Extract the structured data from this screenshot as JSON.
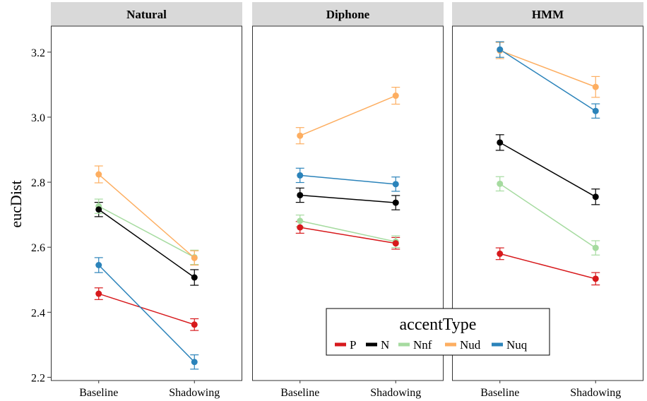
{
  "chart_data": {
    "type": "line",
    "ylabel": "eucDist",
    "xlabel": "",
    "categories": [
      "Baseline",
      "Shadowing"
    ],
    "ylim": [
      2.19,
      3.28
    ],
    "yticks": [
      "2.2",
      "2.4",
      "2.6",
      "2.8",
      "3.0",
      "3.2"
    ],
    "grid": false,
    "legend": {
      "title": "accentType",
      "placement": "bottom-right",
      "entries": [
        "P",
        "N",
        "Nnf",
        "Nud",
        "Nuq"
      ]
    },
    "colors": {
      "P": "#d7191c",
      "N": "#000000",
      "Nnf": "#a6dba0",
      "Nud": "#fdae61",
      "Nuq": "#2b83ba"
    },
    "panels": [
      {
        "title": "Natural",
        "series": [
          {
            "name": "P",
            "values": [
              2.457,
              2.362
            ],
            "errors": [
              0.018,
              0.018
            ]
          },
          {
            "name": "N",
            "values": [
              2.716,
              2.507
            ],
            "errors": [
              0.022,
              0.024
            ]
          },
          {
            "name": "Nnf",
            "values": [
              2.726,
              2.569
            ],
            "errors": [
              0.022,
              0.022
            ]
          },
          {
            "name": "Nud",
            "values": [
              2.824,
              2.567
            ],
            "errors": [
              0.026,
              0.022
            ]
          },
          {
            "name": "Nuq",
            "values": [
              2.545,
              2.247
            ],
            "errors": [
              0.023,
              0.022
            ]
          }
        ]
      },
      {
        "title": "Diphone",
        "series": [
          {
            "name": "P",
            "values": [
              2.661,
              2.612
            ],
            "errors": [
              0.018,
              0.018
            ]
          },
          {
            "name": "N",
            "values": [
              2.76,
              2.737
            ],
            "errors": [
              0.022,
              0.022
            ]
          },
          {
            "name": "Nnf",
            "values": [
              2.681,
              2.617
            ],
            "errors": [
              0.018,
              0.018
            ]
          },
          {
            "name": "Nud",
            "values": [
              2.943,
              3.066
            ],
            "errors": [
              0.025,
              0.026
            ]
          },
          {
            "name": "Nuq",
            "values": [
              2.821,
              2.794
            ],
            "errors": [
              0.022,
              0.022
            ]
          }
        ]
      },
      {
        "title": "HMM",
        "series": [
          {
            "name": "P",
            "values": [
              2.58,
              2.503
            ],
            "errors": [
              0.018,
              0.019
            ]
          },
          {
            "name": "N",
            "values": [
              2.922,
              2.755
            ],
            "errors": [
              0.024,
              0.024
            ]
          },
          {
            "name": "Nnf",
            "values": [
              2.795,
              2.598
            ],
            "errors": [
              0.022,
              0.022
            ]
          },
          {
            "name": "Nud",
            "values": [
              3.205,
              3.093
            ],
            "errors": [
              0.025,
              0.032
            ]
          },
          {
            "name": "Nuq",
            "values": [
              3.208,
              3.019
            ],
            "errors": [
              0.024,
              0.022
            ]
          }
        ]
      }
    ]
  }
}
